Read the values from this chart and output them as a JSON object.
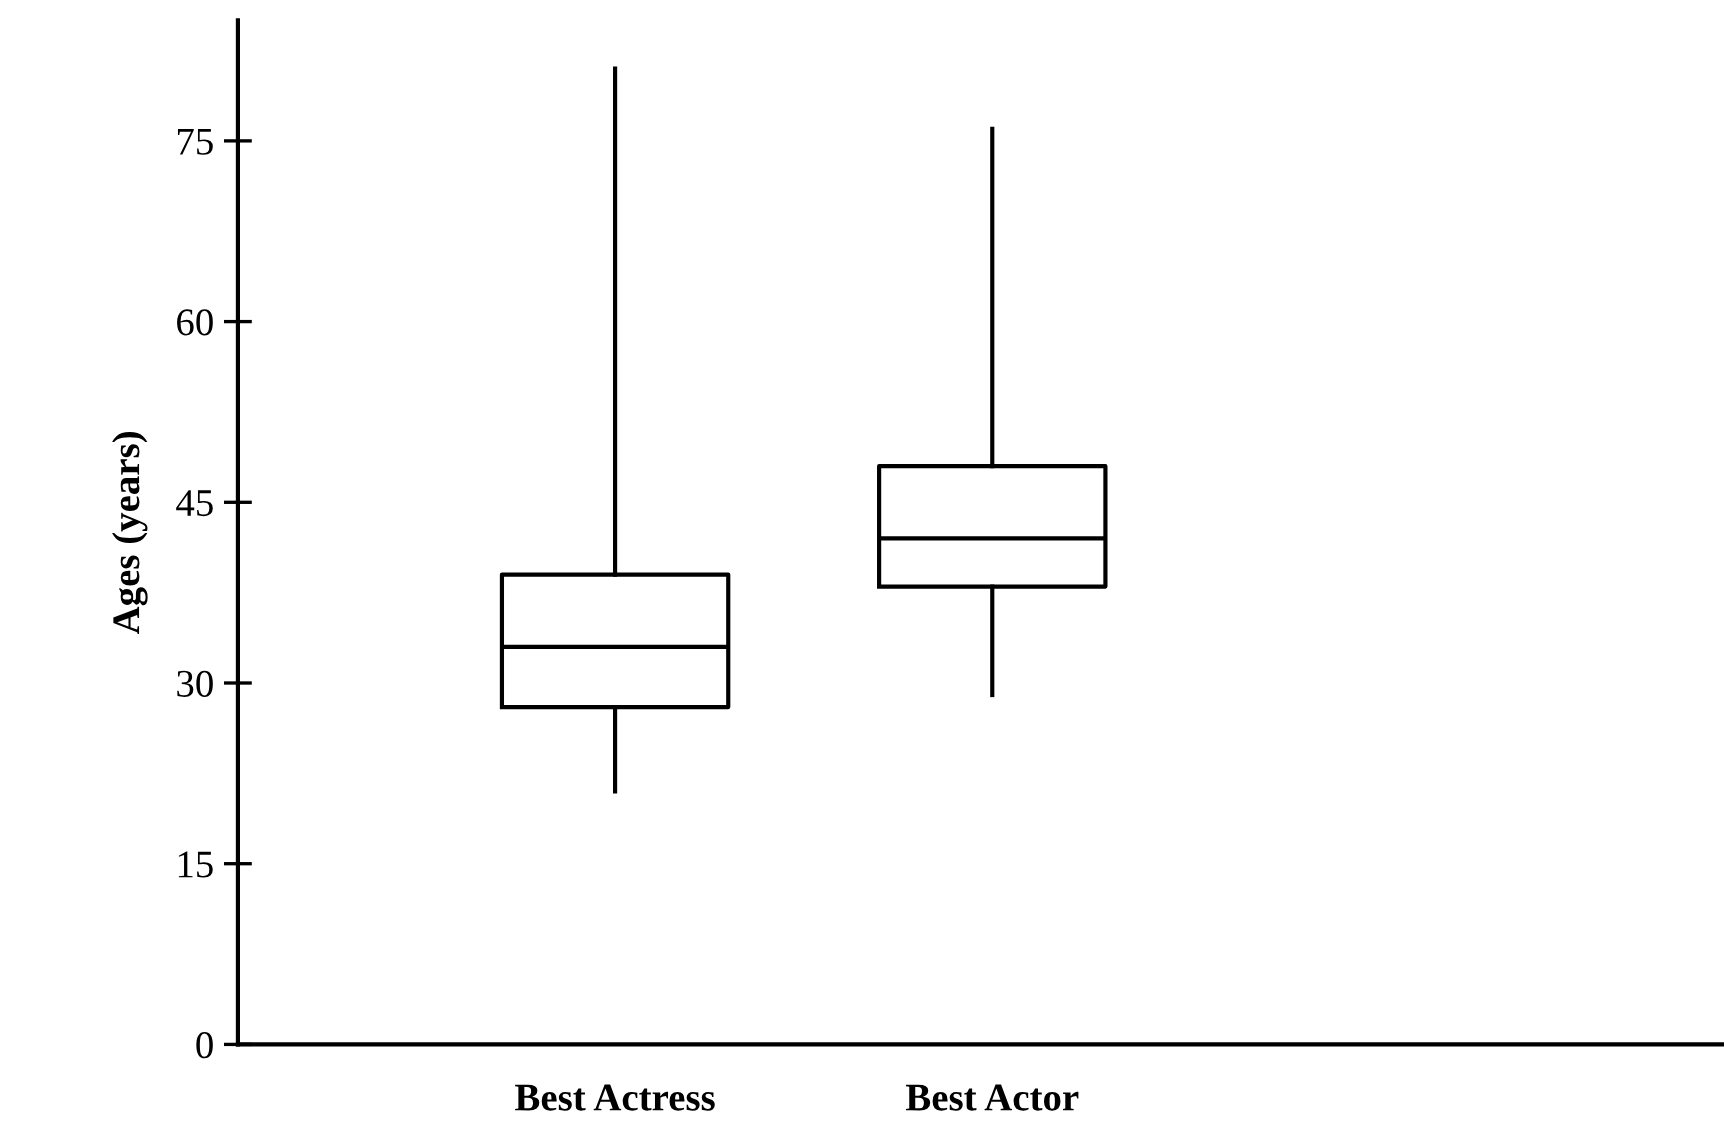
{
  "chart_data": {
    "type": "box",
    "ylabel": "Ages (years)",
    "categories": [
      "Best Actress",
      "Best Actor"
    ],
    "boxes": [
      {
        "low": 21,
        "q1": 28,
        "median": 33,
        "q3": 39,
        "high": 81
      },
      {
        "low": 29,
        "q1": 38,
        "median": 42,
        "q3": 48,
        "high": 76
      }
    ],
    "ylim": [
      0,
      85
    ],
    "yticks": [
      0,
      15,
      30,
      45,
      60,
      75
    ],
    "grid": false,
    "legend": false
  }
}
